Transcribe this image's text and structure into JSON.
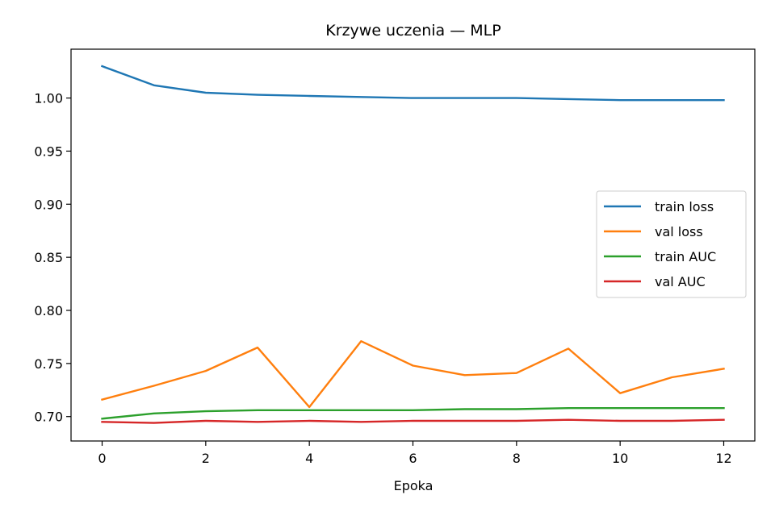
{
  "chart_data": {
    "type": "line",
    "title": "Krzywe uczenia — MLP",
    "xlabel": "Epoka",
    "ylabel": "",
    "x": [
      0,
      1,
      2,
      3,
      4,
      5,
      6,
      7,
      8,
      9,
      10,
      11,
      12
    ],
    "xlim": [
      -0.6,
      12.6
    ],
    "ylim": [
      0.677,
      1.046
    ],
    "xticks": [
      0,
      2,
      4,
      6,
      8,
      10,
      12
    ],
    "xtick_labels": [
      "0",
      "2",
      "4",
      "6",
      "8",
      "10",
      "12"
    ],
    "yticks": [
      0.7,
      0.75,
      0.8,
      0.85,
      0.9,
      0.95,
      1.0
    ],
    "ytick_labels": [
      "0.70",
      "0.75",
      "0.80",
      "0.85",
      "0.90",
      "0.95",
      "1.00"
    ],
    "grid": false,
    "legend_position": "center-right",
    "series": [
      {
        "name": "train loss",
        "color": "#1f77b4",
        "values": [
          1.03,
          1.012,
          1.005,
          1.003,
          1.002,
          1.001,
          1.0,
          1.0,
          1.0,
          0.999,
          0.998,
          0.998,
          0.998
        ]
      },
      {
        "name": "val loss",
        "color": "#ff7f0e",
        "values": [
          0.716,
          0.729,
          0.743,
          0.765,
          0.709,
          0.771,
          0.748,
          0.739,
          0.741,
          0.764,
          0.722,
          0.737,
          0.745
        ]
      },
      {
        "name": "train AUC",
        "color": "#2ca02c",
        "values": [
          0.698,
          0.703,
          0.705,
          0.706,
          0.706,
          0.706,
          0.706,
          0.707,
          0.707,
          0.708,
          0.708,
          0.708,
          0.708
        ]
      },
      {
        "name": "val AUC",
        "color": "#d62728",
        "values": [
          0.695,
          0.694,
          0.696,
          0.695,
          0.696,
          0.695,
          0.696,
          0.696,
          0.696,
          0.697,
          0.696,
          0.696,
          0.697
        ]
      }
    ]
  }
}
